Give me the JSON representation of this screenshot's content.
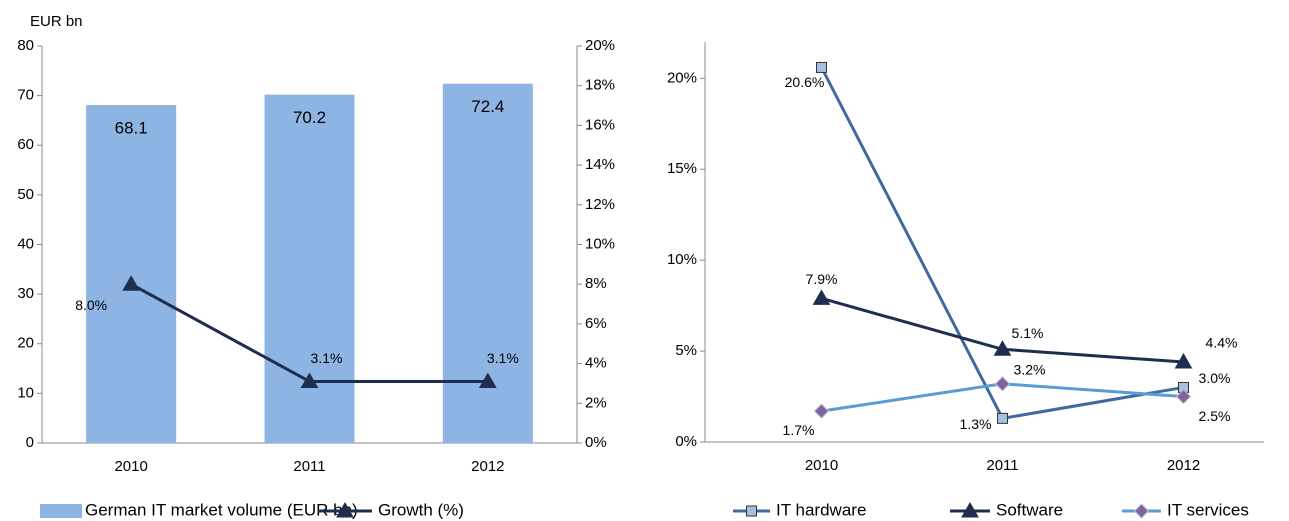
{
  "chart_data": [
    {
      "type": "bar",
      "y_label": "EUR bn",
      "categories": [
        "2010",
        "2011",
        "2012"
      ],
      "series": [
        {
          "name": "German IT market volume (EUR bn)",
          "type": "bar",
          "color": "#8db4e2",
          "values": [
            68.1,
            70.2,
            72.4
          ]
        },
        {
          "name": "Growth (%)",
          "type": "line",
          "axis": "y2",
          "color": "#1f2d4e",
          "marker": "triangle",
          "marker_color": "#1f2d4e",
          "values": [
            8.0,
            3.1,
            3.1
          ],
          "value_labels": [
            "8.0%",
            "3.1%",
            "3.1%"
          ]
        }
      ],
      "ylim": [
        0,
        80
      ],
      "yticks": [
        0,
        10,
        20,
        30,
        40,
        50,
        60,
        70,
        80
      ],
      "y2lim": [
        0,
        20
      ],
      "y2ticks": [
        {
          "value": 0,
          "label": "0%"
        },
        {
          "value": 2,
          "label": "2%"
        },
        {
          "value": 4,
          "label": "4%"
        },
        {
          "value": 6,
          "label": "6%"
        },
        {
          "value": 8,
          "label": "8%"
        },
        {
          "value": 10,
          "label": "10%"
        },
        {
          "value": 12,
          "label": "12%"
        },
        {
          "value": 14,
          "label": "14%"
        },
        {
          "value": 16,
          "label": "16%"
        },
        {
          "value": 18,
          "label": "18%"
        },
        {
          "value": 20,
          "label": "20%"
        }
      ],
      "legend": "bottom"
    },
    {
      "type": "line",
      "categories": [
        "2010",
        "2011",
        "2012"
      ],
      "series": [
        {
          "name": "IT hardware",
          "color": "#3f6aa0",
          "marker": "square",
          "marker_color": "#a6c0e0",
          "values": [
            20.6,
            1.3,
            3.0
          ],
          "value_labels": [
            "20.6%",
            "1.3%",
            "3.0%"
          ]
        },
        {
          "name": "Software",
          "color": "#1f2d4e",
          "marker": "triangle",
          "marker_color": "#1f2d4e",
          "values": [
            7.9,
            5.1,
            4.4
          ],
          "value_labels": [
            "7.9%",
            "5.1%",
            "4.4%"
          ]
        },
        {
          "name": "IT services",
          "color": "#5b9bd5",
          "marker": "diamond",
          "marker_color": "#8064a2",
          "values": [
            1.7,
            3.2,
            2.5
          ],
          "value_labels": [
            "1.7%",
            "3.2%",
            "2.5%"
          ]
        }
      ],
      "ylim": [
        0,
        22
      ],
      "yticks": [
        {
          "value": 0,
          "label": "0%"
        },
        {
          "value": 5,
          "label": "5%"
        },
        {
          "value": 10,
          "label": "10%"
        },
        {
          "value": 15,
          "label": "15%"
        },
        {
          "value": 20,
          "label": "20%"
        }
      ],
      "legend": "bottom"
    }
  ]
}
